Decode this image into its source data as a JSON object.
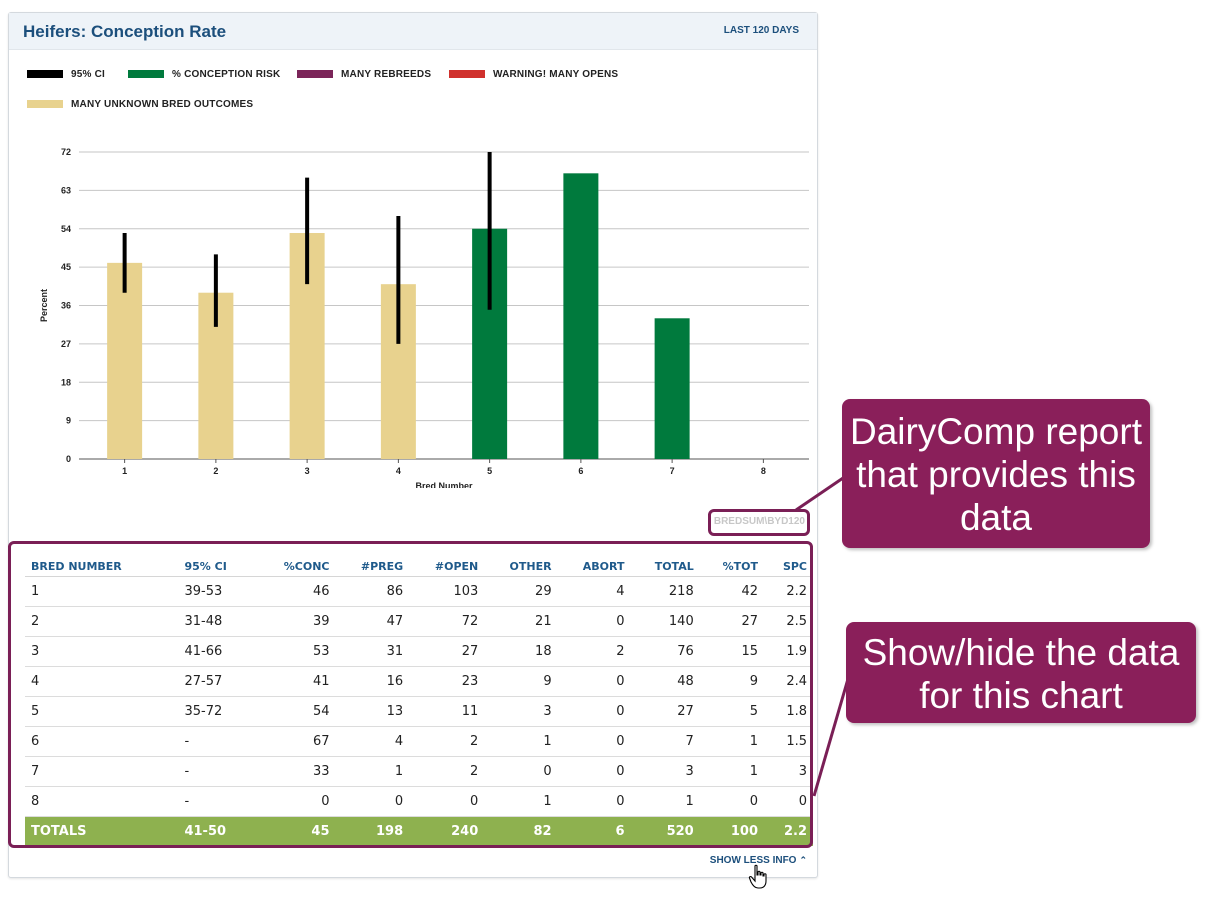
{
  "panel": {
    "title": "Heifers: Conception Rate",
    "range_label": "LAST 120 DAYS",
    "report_code": "BREDSUM\\BYD120",
    "show_less_label": "SHOW LESS INFO"
  },
  "legend": [
    {
      "label": "95% CI",
      "color": "#000000"
    },
    {
      "label": "% CONCEPTION RISK",
      "color": "#007a3d"
    },
    {
      "label": "MANY REBREEDS",
      "color": "#7b2559"
    },
    {
      "label": "WARNING! MANY OPENS",
      "color": "#d0312d"
    },
    {
      "label": "MANY UNKNOWN BRED OUTCOMES",
      "color": "#e8d28e"
    }
  ],
  "chart_data": {
    "type": "bar",
    "title": "",
    "xlabel": "Bred Number",
    "ylabel": "Percent",
    "categories": [
      "1",
      "2",
      "3",
      "4",
      "5",
      "6",
      "7",
      "8"
    ],
    "values": [
      46,
      39,
      53,
      41,
      54,
      67,
      33,
      0
    ],
    "colors": [
      "#e8d28e",
      "#e8d28e",
      "#e8d28e",
      "#e8d28e",
      "#007a3d",
      "#007a3d",
      "#007a3d",
      "#007a3d"
    ],
    "ci_low": [
      39,
      31,
      41,
      27,
      35,
      null,
      null,
      null
    ],
    "ci_high": [
      53,
      48,
      66,
      57,
      72,
      null,
      null,
      null
    ],
    "yticks": [
      0,
      9,
      18,
      27,
      36,
      45,
      54,
      63,
      72
    ],
    "ylim": [
      0,
      72
    ],
    "grid": true
  },
  "table": {
    "headers": [
      "BRED NUMBER",
      "95% CI",
      "%CONC",
      "#PREG",
      "#OPEN",
      "OTHER",
      "ABORT",
      "TOTAL",
      "%TOT",
      "SPC"
    ],
    "rows": [
      [
        "1",
        "39-53",
        "46",
        "86",
        "103",
        "29",
        "4",
        "218",
        "42",
        "2.2"
      ],
      [
        "2",
        "31-48",
        "39",
        "47",
        "72",
        "21",
        "0",
        "140",
        "27",
        "2.5"
      ],
      [
        "3",
        "41-66",
        "53",
        "31",
        "27",
        "18",
        "2",
        "76",
        "15",
        "1.9"
      ],
      [
        "4",
        "27-57",
        "41",
        "16",
        "23",
        "9",
        "0",
        "48",
        "9",
        "2.4"
      ],
      [
        "5",
        "35-72",
        "54",
        "13",
        "11",
        "3",
        "0",
        "27",
        "5",
        "1.8"
      ],
      [
        "6",
        "-",
        "67",
        "4",
        "2",
        "1",
        "0",
        "7",
        "1",
        "1.5"
      ],
      [
        "7",
        "-",
        "33",
        "1",
        "2",
        "0",
        "0",
        "3",
        "1",
        "3"
      ],
      [
        "8",
        "-",
        "0",
        "0",
        "0",
        "1",
        "0",
        "1",
        "0",
        "0"
      ]
    ],
    "totals": [
      "TOTALS",
      "41-50",
      "45",
      "198",
      "240",
      "82",
      "6",
      "520",
      "100",
      "2.2"
    ]
  },
  "callouts": {
    "report": "DairyComp report that provides this data",
    "toggle": "Show/hide the data for this chart"
  }
}
